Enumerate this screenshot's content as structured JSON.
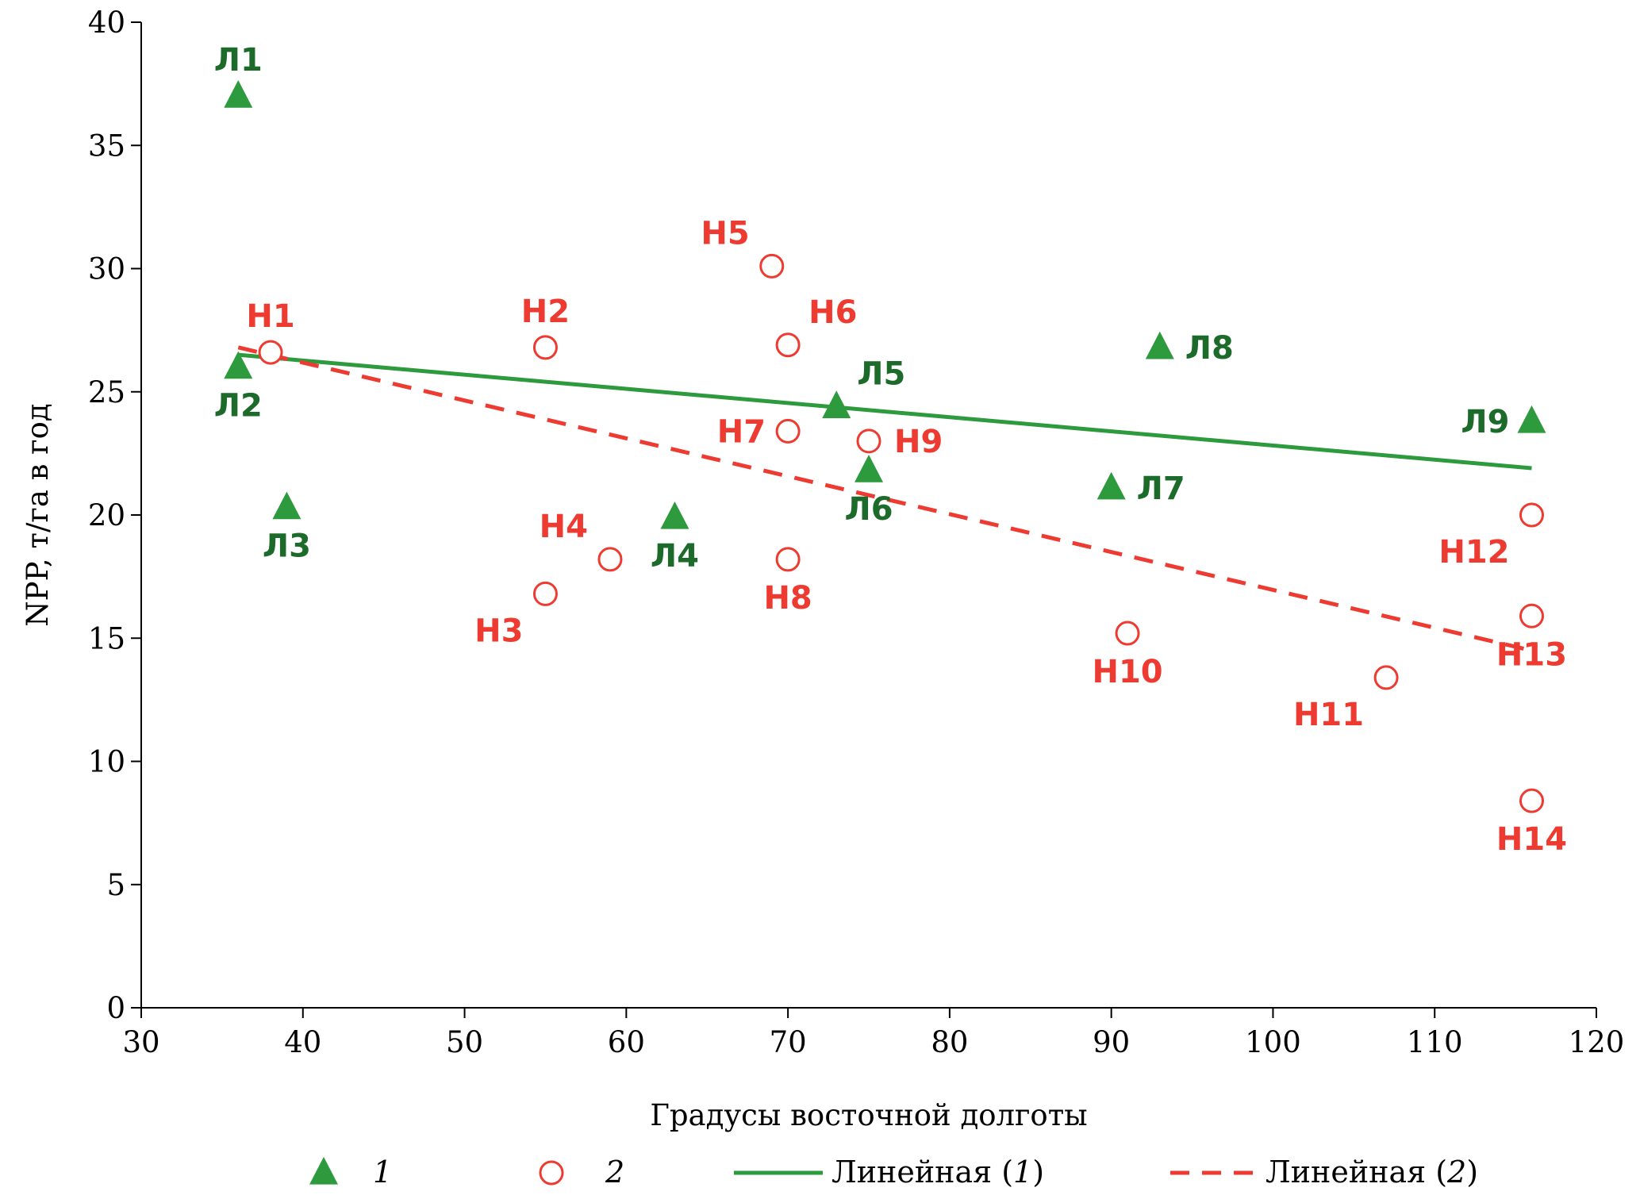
{
  "chart_data": {
    "type": "scatter",
    "xlabel": "Градусы восточной долготы",
    "ylabel": "NPP, т/га в год",
    "xlim": [
      30,
      120
    ],
    "ylim": [
      0,
      40
    ],
    "x_ticks": [
      30,
      40,
      50,
      60,
      70,
      80,
      90,
      100,
      110,
      120
    ],
    "y_ticks": [
      0,
      5,
      10,
      15,
      20,
      25,
      30,
      35,
      40
    ],
    "colors": {
      "series1": "#2e9a3e",
      "series1_label": "#1d6b2a",
      "series2": "#ee3b32"
    },
    "series": [
      {
        "name": "1",
        "marker": "triangle",
        "points": [
          {
            "label": "Л1",
            "x": 36,
            "y": 37.0,
            "label_pos": "above"
          },
          {
            "label": "Л2",
            "x": 36,
            "y": 26.0,
            "label_pos": "below"
          },
          {
            "label": "Л3",
            "x": 39,
            "y": 20.3,
            "label_pos": "below"
          },
          {
            "label": "Л4",
            "x": 63,
            "y": 19.9,
            "label_pos": "below"
          },
          {
            "label": "Л5",
            "x": 73,
            "y": 24.4,
            "label_pos": "above-right"
          },
          {
            "label": "Л6",
            "x": 75,
            "y": 21.8,
            "label_pos": "below"
          },
          {
            "label": "Л7",
            "x": 90,
            "y": 21.1,
            "label_pos": "right"
          },
          {
            "label": "Л8",
            "x": 93,
            "y": 26.8,
            "label_pos": "right"
          },
          {
            "label": "Л9",
            "x": 116,
            "y": 23.8,
            "label_pos": "left"
          }
        ]
      },
      {
        "name": "2",
        "marker": "circle",
        "points": [
          {
            "label": "Н1",
            "x": 38,
            "y": 26.6,
            "label_pos": "above"
          },
          {
            "label": "Н2",
            "x": 55,
            "y": 26.8,
            "label_pos": "above"
          },
          {
            "label": "Н3",
            "x": 55,
            "y": 16.8,
            "label_pos": "below-left"
          },
          {
            "label": "Н4",
            "x": 59,
            "y": 18.2,
            "label_pos": "above-left"
          },
          {
            "label": "Н5",
            "x": 69,
            "y": 30.1,
            "label_pos": "above-left"
          },
          {
            "label": "Н6",
            "x": 70,
            "y": 26.9,
            "label_pos": "above-right"
          },
          {
            "label": "Н7",
            "x": 70,
            "y": 23.4,
            "label_pos": "left"
          },
          {
            "label": "Н8",
            "x": 70,
            "y": 18.2,
            "label_pos": "below"
          },
          {
            "label": "Н9",
            "x": 75,
            "y": 23.0,
            "label_pos": "right"
          },
          {
            "label": "Н10",
            "x": 91,
            "y": 15.2,
            "label_pos": "below"
          },
          {
            "label": "Н11",
            "x": 107,
            "y": 13.4,
            "label_pos": "below-left"
          },
          {
            "label": "Н12",
            "x": 116,
            "y": 20.0,
            "label_pos": "below-left"
          },
          {
            "label": "Н13",
            "x": 116,
            "y": 15.9,
            "label_pos": "below"
          },
          {
            "label": "Н14",
            "x": 116,
            "y": 8.4,
            "label_pos": "below"
          }
        ]
      }
    ],
    "trendlines": [
      {
        "name": "Линейная (1)",
        "series": "1",
        "style": "solid",
        "x": [
          36,
          116
        ],
        "y": [
          26.5,
          21.9
        ]
      },
      {
        "name": "Линейная (2)",
        "series": "2",
        "style": "dashed",
        "x": [
          36,
          116
        ],
        "y": [
          26.8,
          14.5
        ]
      }
    ],
    "legend": {
      "position": "bottom",
      "items": [
        {
          "marker": "triangle",
          "prefix": "",
          "italic": "1",
          "suffix": ""
        },
        {
          "marker": "circle",
          "prefix": "",
          "italic": "2",
          "suffix": ""
        },
        {
          "marker": "solid-line",
          "prefix": "Линейная (",
          "italic": "1",
          "suffix": ")"
        },
        {
          "marker": "dashed-line",
          "prefix": "Линейная (",
          "italic": "2",
          "suffix": ")"
        }
      ]
    }
  }
}
